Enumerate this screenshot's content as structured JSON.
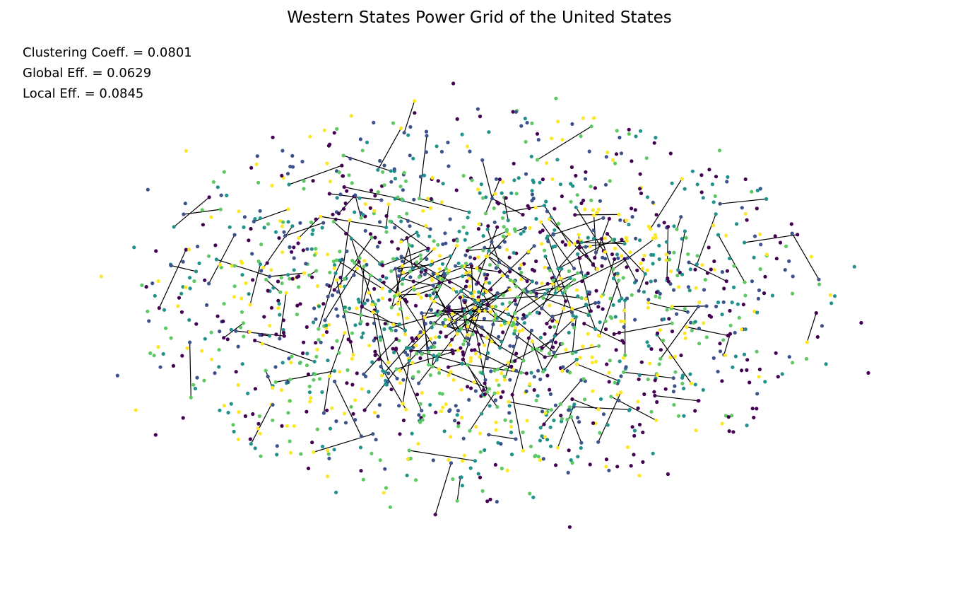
{
  "figure": {
    "title": "Western States Power Grid of the United States",
    "stats": [
      "Clustering Coeff. = 0.0801",
      "Global Eff. = 0.0629",
      "Local Eff. = 0.0845"
    ]
  },
  "graph": {
    "edge_color": "#000000",
    "node_colormap": [
      "#440154",
      "#3b528b",
      "#21918c",
      "#5ec962",
      "#fde725"
    ]
  }
}
